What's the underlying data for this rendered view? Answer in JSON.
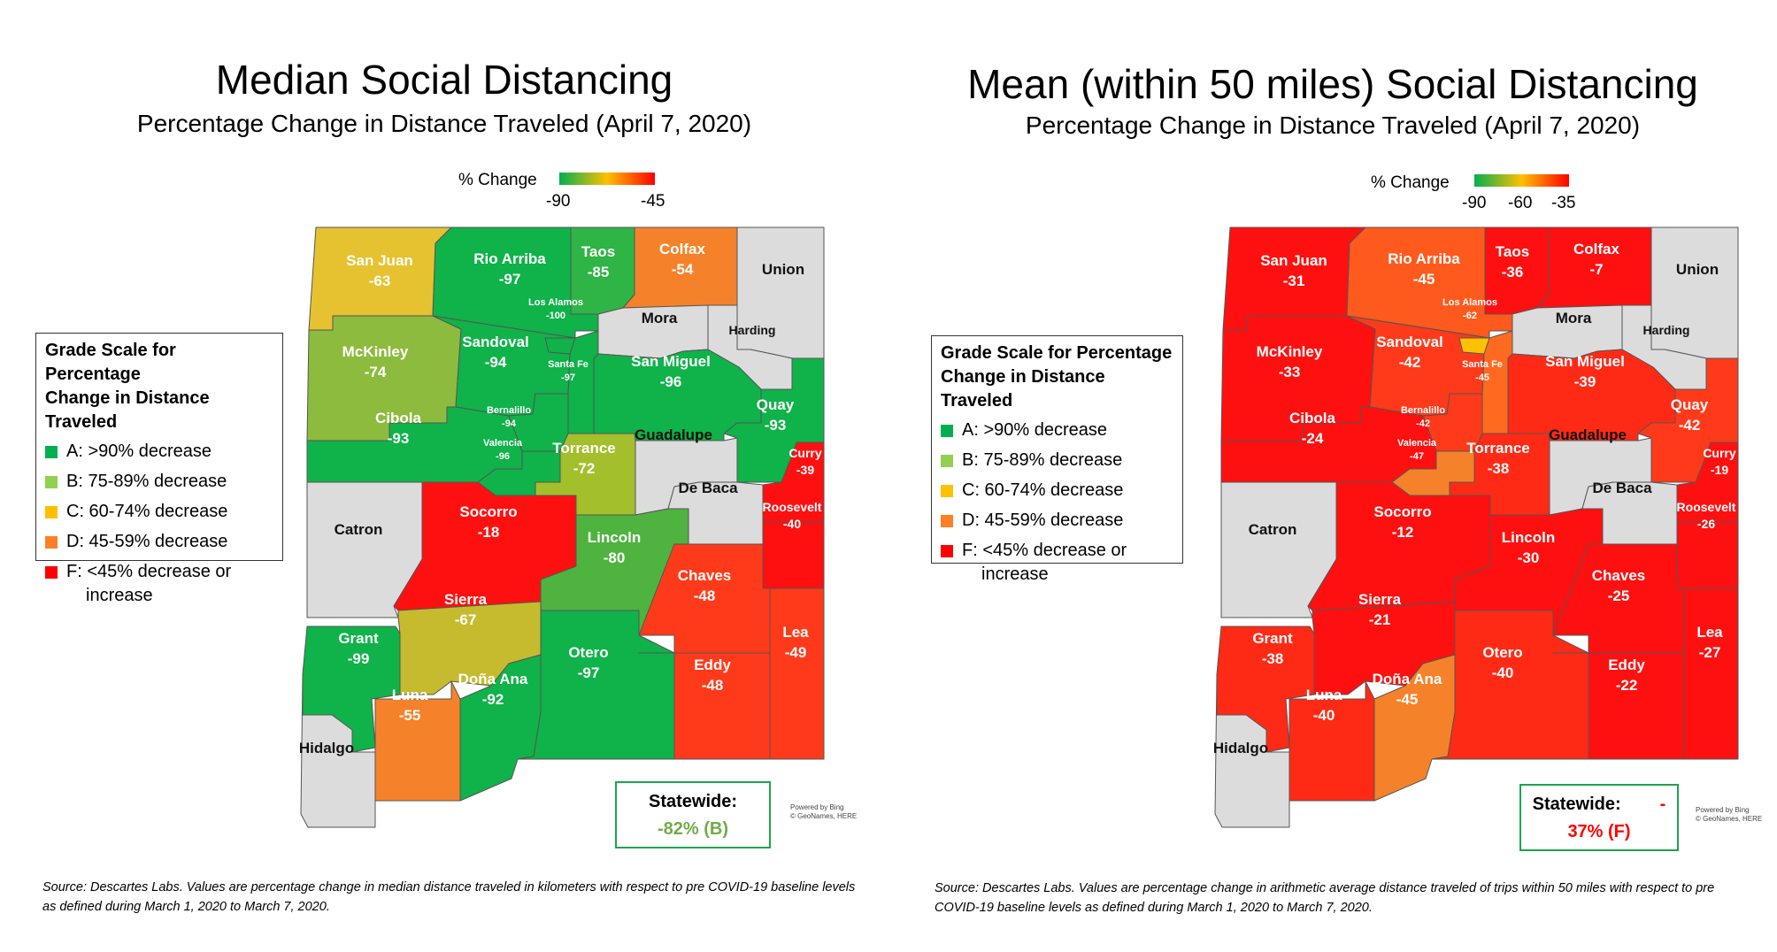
{
  "left": {
    "title": "Median Social Distancing",
    "subtitle": "Percentage Change in Distance Traveled (April 7, 2020)",
    "colorbar": {
      "label": "% Change",
      "ticks": [
        "-90",
        "-45"
      ],
      "gradient": [
        "#00b050",
        "#ffc000",
        "#ff0000"
      ]
    },
    "legend": {
      "title_line1": "Grade Scale for Percentage",
      "title_line2": "Change in Distance Traveled",
      "items": [
        {
          "label": "A: >90% decrease",
          "color": "#00b050"
        },
        {
          "label": "B: 75-89% decrease",
          "color": "#92d050"
        },
        {
          "label": "C: 60-74% decrease",
          "color": "#ffc000"
        },
        {
          "label": "D: 45-59% decrease",
          "color": "#ff7f27"
        },
        {
          "label": "F: <45% decrease or",
          "label2": "increase",
          "color": "#ff0000"
        }
      ]
    },
    "statewide": {
      "label": "Statewide:",
      "value": "-82% (B)",
      "value_color": "#70ad47"
    },
    "powered": [
      "Powered by Bing",
      "© GeoNames, HERE"
    ],
    "source": "Source: Descartes Labs.  Values are percentage change in median distance traveled in kilometers with respect to pre COVID-19 baseline levels as defined during March 1, 2020 to March 7, 2020.",
    "counties": {
      "san_juan": {
        "name": "San Juan",
        "value": "-63",
        "color": "#e6c230"
      },
      "rio_arriba": {
        "name": "Rio Arriba",
        "value": "-97",
        "color": "#10b24a"
      },
      "taos": {
        "name": "Taos",
        "value": "-85",
        "color": "#2fb446"
      },
      "colfax": {
        "name": "Colfax",
        "value": "-54",
        "color": "#f5822a"
      },
      "union": {
        "name": "Union",
        "value": "",
        "color": "#dcdcdc"
      },
      "los_alamos": {
        "name": "Los Alamos",
        "value": "-100",
        "color": "#10b24a"
      },
      "mora": {
        "name": "Mora",
        "value": "",
        "color": "#dcdcdc"
      },
      "harding": {
        "name": "Harding",
        "value": "",
        "color": "#dcdcdc"
      },
      "mckinley": {
        "name": "McKinley",
        "value": "-74",
        "color": "#8dbb3e"
      },
      "sandoval": {
        "name": "Sandoval",
        "value": "-94",
        "color": "#10b24a"
      },
      "santa_fe": {
        "name": "Santa Fe",
        "value": "-97",
        "color": "#10b24a"
      },
      "san_miguel": {
        "name": "San Miguel",
        "value": "-96",
        "color": "#10b24a"
      },
      "bernalillo": {
        "name": "Bernalillo",
        "value": "-94",
        "color": "#10b24a"
      },
      "cibola": {
        "name": "Cibola",
        "value": "-93",
        "color": "#10b24a"
      },
      "valencia": {
        "name": "Valencia",
        "value": "-96",
        "color": "#10b24a"
      },
      "torrance": {
        "name": "Torrance",
        "value": "-72",
        "color": "#a3bf2c"
      },
      "guadalupe": {
        "name": "Guadalupe",
        "value": "",
        "color": "#dcdcdc"
      },
      "quay": {
        "name": "Quay",
        "value": "-93",
        "color": "#10b24a"
      },
      "curry": {
        "name": "Curry",
        "value": "-39",
        "color": "#ff1010"
      },
      "de_baca": {
        "name": "De Baca",
        "value": "",
        "color": "#dcdcdc"
      },
      "roosevelt": {
        "name": "Roosevelt",
        "value": "-40",
        "color": "#ff1010"
      },
      "catron": {
        "name": "Catron",
        "value": "",
        "color": "#dcdcdc"
      },
      "socorro": {
        "name": "Socorro",
        "value": "-18",
        "color": "#ff1010"
      },
      "lincoln": {
        "name": "Lincoln",
        "value": "-80",
        "color": "#4fb33f"
      },
      "chaves": {
        "name": "Chaves",
        "value": "-48",
        "color": "#ff3a1a"
      },
      "sierra": {
        "name": "Sierra",
        "value": "-67",
        "color": "#c6bb2e"
      },
      "grant": {
        "name": "Grant",
        "value": "-99",
        "color": "#10b24a"
      },
      "luna": {
        "name": "Luna",
        "value": "-55",
        "color": "#f5822a"
      },
      "dona_ana": {
        "name": "Doña Ana",
        "value": "-92",
        "color": "#10b24a"
      },
      "otero": {
        "name": "Otero",
        "value": "-97",
        "color": "#10b24a"
      },
      "eddy": {
        "name": "Eddy",
        "value": "-48",
        "color": "#ff3a1a"
      },
      "lea": {
        "name": "Lea",
        "value": "-49",
        "color": "#ff3a1a"
      },
      "hidalgo": {
        "name": "Hidalgo",
        "value": "",
        "color": "#dcdcdc"
      }
    }
  },
  "right": {
    "title": "Mean (within 50 miles) Social Distancing",
    "subtitle": "Percentage Change in Distance Traveled (April 7, 2020)",
    "colorbar": {
      "label": "% Change",
      "ticks": [
        "-90",
        "-60",
        "-35"
      ],
      "gradient": [
        "#00b050",
        "#ffc000",
        "#ff0000"
      ]
    },
    "legend": {
      "title_line1": "Grade Scale for Percentage",
      "title_line2": "Change in Distance Traveled",
      "items": [
        {
          "label": "A: >90% decrease",
          "color": "#00b050"
        },
        {
          "label": "B: 75-89% decrease",
          "color": "#92d050"
        },
        {
          "label": "C: 60-74% decrease",
          "color": "#ffc000"
        },
        {
          "label": "D: 45-59% decrease",
          "color": "#ff7f27"
        },
        {
          "label": "F: <45% decrease or",
          "label2": "increase",
          "color": "#ff0000"
        }
      ]
    },
    "statewide": {
      "label": "Statewide:",
      "dash": "-",
      "value": "37% (F)",
      "value_color": "#ff0000"
    },
    "powered": [
      "Powered by Bing",
      "© GeoNames, HERE"
    ],
    "source": "Source: Descartes Labs.  Values are percentage change in arithmetic average distance traveled of trips within 50 miles with respect to pre COVID-19 baseline levels as defined during March 1, 2020 to March 7, 2020.",
    "counties": {
      "san_juan": {
        "name": "San Juan",
        "value": "-31",
        "color": "#ff1010"
      },
      "rio_arriba": {
        "name": "Rio Arriba",
        "value": "-45",
        "color": "#ff5a1e"
      },
      "taos": {
        "name": "Taos",
        "value": "-36",
        "color": "#ff1010"
      },
      "colfax": {
        "name": "Colfax",
        "value": "-7",
        "color": "#ff1010"
      },
      "union": {
        "name": "Union",
        "value": "",
        "color": "#dcdcdc"
      },
      "los_alamos": {
        "name": "Los Alamos",
        "value": "-62",
        "color": "#ffc000"
      },
      "mora": {
        "name": "Mora",
        "value": "",
        "color": "#dcdcdc"
      },
      "harding": {
        "name": "Harding",
        "value": "",
        "color": "#dcdcdc"
      },
      "mckinley": {
        "name": "McKinley",
        "value": "-33",
        "color": "#ff1010"
      },
      "sandoval": {
        "name": "Sandoval",
        "value": "-42",
        "color": "#ff3a1a"
      },
      "santa_fe": {
        "name": "Santa Fe",
        "value": "-45",
        "color": "#ff6a20"
      },
      "san_miguel": {
        "name": "San Miguel",
        "value": "-39",
        "color": "#ff2a16"
      },
      "bernalillo": {
        "name": "Bernalillo",
        "value": "-42",
        "color": "#ff3a1a"
      },
      "cibola": {
        "name": "Cibola",
        "value": "-24",
        "color": "#ff1010"
      },
      "valencia": {
        "name": "Valencia",
        "value": "-47",
        "color": "#f5822a"
      },
      "torrance": {
        "name": "Torrance",
        "value": "-38",
        "color": "#ff2a16"
      },
      "guadalupe": {
        "name": "Guadalupe",
        "value": "",
        "color": "#dcdcdc"
      },
      "quay": {
        "name": "Quay",
        "value": "-42",
        "color": "#ff3a1a"
      },
      "curry": {
        "name": "Curry",
        "value": "-19",
        "color": "#ff1010"
      },
      "de_baca": {
        "name": "De Baca",
        "value": "",
        "color": "#dcdcdc"
      },
      "roosevelt": {
        "name": "Roosevelt",
        "value": "-26",
        "color": "#ff1010"
      },
      "catron": {
        "name": "Catron",
        "value": "",
        "color": "#dcdcdc"
      },
      "socorro": {
        "name": "Socorro",
        "value": "-12",
        "color": "#ff1010"
      },
      "lincoln": {
        "name": "Lincoln",
        "value": "-30",
        "color": "#ff1010"
      },
      "chaves": {
        "name": "Chaves",
        "value": "-25",
        "color": "#ff1010"
      },
      "sierra": {
        "name": "Sierra",
        "value": "-21",
        "color": "#ff1010"
      },
      "grant": {
        "name": "Grant",
        "value": "-38",
        "color": "#ff2a16"
      },
      "luna": {
        "name": "Luna",
        "value": "-40",
        "color": "#ff2a16"
      },
      "dona_ana": {
        "name": "Doña Ana",
        "value": "-45",
        "color": "#f5822a"
      },
      "otero": {
        "name": "Otero",
        "value": "-40",
        "color": "#ff2a16"
      },
      "eddy": {
        "name": "Eddy",
        "value": "-22",
        "color": "#ff1010"
      },
      "lea": {
        "name": "Lea",
        "value": "-27",
        "color": "#ff1010"
      },
      "hidalgo": {
        "name": "Hidalgo",
        "value": "",
        "color": "#dcdcdc"
      }
    }
  }
}
